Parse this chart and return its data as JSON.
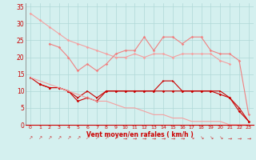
{
  "x": [
    0,
    1,
    2,
    3,
    4,
    5,
    6,
    7,
    8,
    9,
    10,
    11,
    12,
    13,
    14,
    15,
    16,
    17,
    18,
    19,
    20,
    21,
    22,
    23
  ],
  "line1": [
    33,
    31,
    29,
    27,
    25,
    24,
    23,
    22,
    21,
    20,
    20,
    21,
    20,
    21,
    21,
    20,
    21,
    21,
    21,
    21,
    19,
    18,
    null,
    null
  ],
  "line2": [
    null,
    null,
    24,
    23,
    20,
    16,
    18,
    16,
    18,
    21,
    22,
    22,
    26,
    22,
    26,
    26,
    24,
    26,
    26,
    22,
    21,
    21,
    19,
    3
  ],
  "line3": [
    14,
    12,
    11,
    11,
    10,
    8,
    10,
    8,
    10,
    10,
    10,
    10,
    10,
    10,
    13,
    13,
    10,
    10,
    10,
    10,
    10,
    8,
    5,
    1
  ],
  "line5": [
    null,
    12,
    11,
    11,
    10,
    7,
    8,
    7,
    10,
    10,
    10,
    10,
    10,
    10,
    10,
    10,
    10,
    10,
    10,
    10,
    9,
    8,
    4,
    1
  ],
  "line7_straight": [
    14,
    13,
    12,
    11,
    10,
    9,
    8,
    7,
    7,
    6,
    5,
    5,
    4,
    3,
    3,
    2,
    2,
    1,
    1,
    1,
    1,
    0,
    0,
    0
  ],
  "background_color": "#d4f0ef",
  "grid_color": "#b0d8d8",
  "line1_color": "#f4a0a0",
  "line2_color": "#f08080",
  "line3_color": "#cc0000",
  "line5_color": "#cc0000",
  "line7_color": "#f4a0a0",
  "xlabel": "Vent moyen/en rafales ( km/h )",
  "ylim": [
    0,
    36
  ],
  "xlim": [
    -0.5,
    23.5
  ],
  "yticks": [
    0,
    5,
    10,
    15,
    20,
    25,
    30,
    35
  ],
  "xticks": [
    0,
    1,
    2,
    3,
    4,
    5,
    6,
    7,
    8,
    9,
    10,
    11,
    12,
    13,
    14,
    15,
    16,
    17,
    18,
    19,
    20,
    21,
    22,
    23
  ]
}
